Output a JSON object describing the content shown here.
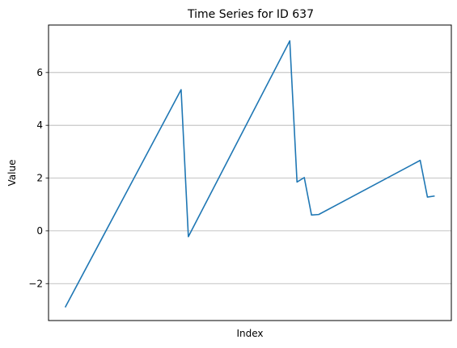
{
  "chart_data": {
    "type": "line",
    "title": "Time Series for ID 637",
    "xlabel": "Index",
    "ylabel": "Value",
    "x": [
      0,
      16,
      17,
      31,
      32,
      33,
      34,
      35,
      49,
      50,
      51
    ],
    "series": [
      {
        "values": [
          -2.9,
          5.35,
          -0.22,
          7.2,
          1.85,
          2.02,
          0.6,
          0.62,
          2.67,
          1.28,
          1.32
        ]
      }
    ],
    "xlim": [
      -2.3,
      53.3
    ],
    "ylim": [
      -3.4,
      7.8
    ],
    "yticks": [
      -2,
      0,
      2,
      4,
      6
    ],
    "ytick_labels": [
      "−2",
      "0",
      "2",
      "4",
      "6"
    ],
    "grid": "y",
    "line_color": "#1f77b4"
  }
}
